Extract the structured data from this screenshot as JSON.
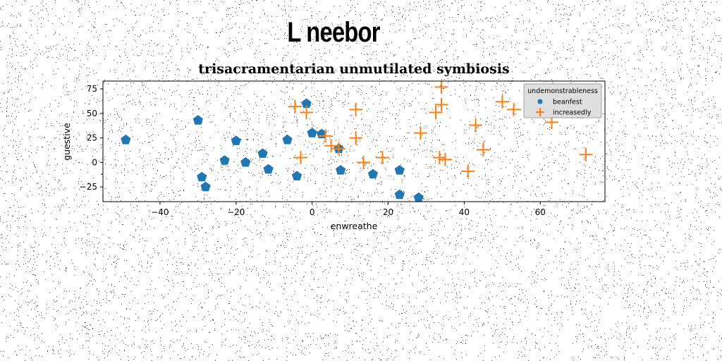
{
  "figure": {
    "suptitle": "L neebor"
  },
  "chart_data": {
    "type": "scatter",
    "title": "trisacramentarian unmutilated symbiosis",
    "xlabel": "enwreathe",
    "ylabel": "guestive",
    "xlim": [
      -55,
      77
    ],
    "ylim": [
      -40,
      83
    ],
    "xticks": [
      -40,
      -20,
      0,
      20,
      40,
      60
    ],
    "yticks": [
      -25,
      0,
      25,
      50,
      75
    ],
    "tick_labels_x": [
      "−40",
      "−20",
      "0",
      "20",
      "40",
      "60"
    ],
    "tick_labels_y": [
      "−25",
      "0",
      "25",
      "50",
      "75"
    ],
    "grid": false,
    "legend": {
      "title": "undemonstrableness",
      "placement": "top-right"
    },
    "series": [
      {
        "name": "beanfest",
        "marker": "pentagon",
        "color": "#1f77b4",
        "points": [
          [
            -49,
            23
          ],
          [
            -30,
            43
          ],
          [
            -29,
            -15
          ],
          [
            -28,
            -25
          ],
          [
            -23,
            2
          ],
          [
            -20,
            22
          ],
          [
            -17.5,
            0
          ],
          [
            -13,
            9
          ],
          [
            -11.5,
            -7
          ],
          [
            -6.5,
            23
          ],
          [
            -4,
            -14
          ],
          [
            -1.5,
            60
          ],
          [
            0,
            30
          ],
          [
            2.5,
            29
          ],
          [
            7,
            14
          ],
          [
            7.5,
            -8
          ],
          [
            16,
            -12
          ],
          [
            23,
            -8
          ],
          [
            23,
            -33
          ],
          [
            28,
            -36
          ]
        ]
      },
      {
        "name": "increasedly",
        "marker": "plus",
        "color": "#ff7f0e",
        "points": [
          [
            -4.5,
            57
          ],
          [
            -3,
            5
          ],
          [
            -1.5,
            51
          ],
          [
            3.5,
            27
          ],
          [
            5,
            17
          ],
          [
            7,
            14
          ],
          [
            11.5,
            54
          ],
          [
            11.5,
            25
          ],
          [
            13.5,
            0
          ],
          [
            18.5,
            5
          ],
          [
            28.5,
            30
          ],
          [
            32.5,
            51
          ],
          [
            33.5,
            5
          ],
          [
            34,
            77
          ],
          [
            34,
            59
          ],
          [
            35,
            3
          ],
          [
            41,
            -9
          ],
          [
            43,
            38
          ],
          [
            45,
            13
          ],
          [
            50,
            62
          ],
          [
            53,
            54
          ],
          [
            63,
            41
          ],
          [
            72,
            8
          ]
        ]
      }
    ]
  }
}
